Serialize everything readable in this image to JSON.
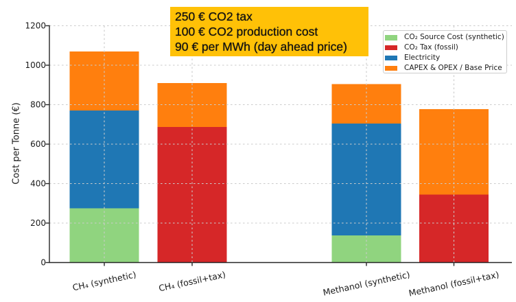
{
  "chart_data": {
    "type": "bar",
    "stacked": true,
    "categories": [
      "CH₄ (synthetic)",
      "CH₄ (fossil+tax)",
      "Methanol (synthetic)",
      "Methanol (fossil+tax)"
    ],
    "series": [
      {
        "name": "CO₂ Source Cost (synthetic)",
        "color": "#90d47f",
        "values": [
          275,
          0,
          137.5,
          0
        ]
      },
      {
        "name": "CO₂ Tax (fossil)",
        "color": "#d62728",
        "values": [
          0,
          687.5,
          0,
          343.75
        ]
      },
      {
        "name": "Electricity",
        "color": "#1f77b4",
        "values": [
          495,
          0,
          567.5,
          0
        ]
      },
      {
        "name": "CAPEX & OPEX / Base Price",
        "color": "#ff7f0e",
        "values": [
          300,
          222.5,
          200,
          433.75
        ]
      }
    ],
    "bar_totals": [
      1070,
      910,
      905,
      777.5
    ],
    "title": "",
    "xlabel": "",
    "ylabel": "Cost per Tonne (€)",
    "ylim": [
      0,
      1200
    ],
    "yticks": [
      0,
      200,
      400,
      600,
      800,
      1000,
      1200
    ],
    "grid": "both, dashed, drawn above bars",
    "legend_position": "upper right"
  },
  "annotation": {
    "lines": [
      "250 € CO2 tax",
      "100 € CO2 production cost",
      "90 € per MWh (day ahead price)"
    ],
    "background": "#ffc107",
    "text_color": "#111111"
  },
  "style": {
    "background": "#ffffff",
    "grid_color": "#cbcbcb",
    "spine_color": "#262626",
    "tick_label_color": "#1a1a1a",
    "legend_border_color": "#cccccc"
  }
}
